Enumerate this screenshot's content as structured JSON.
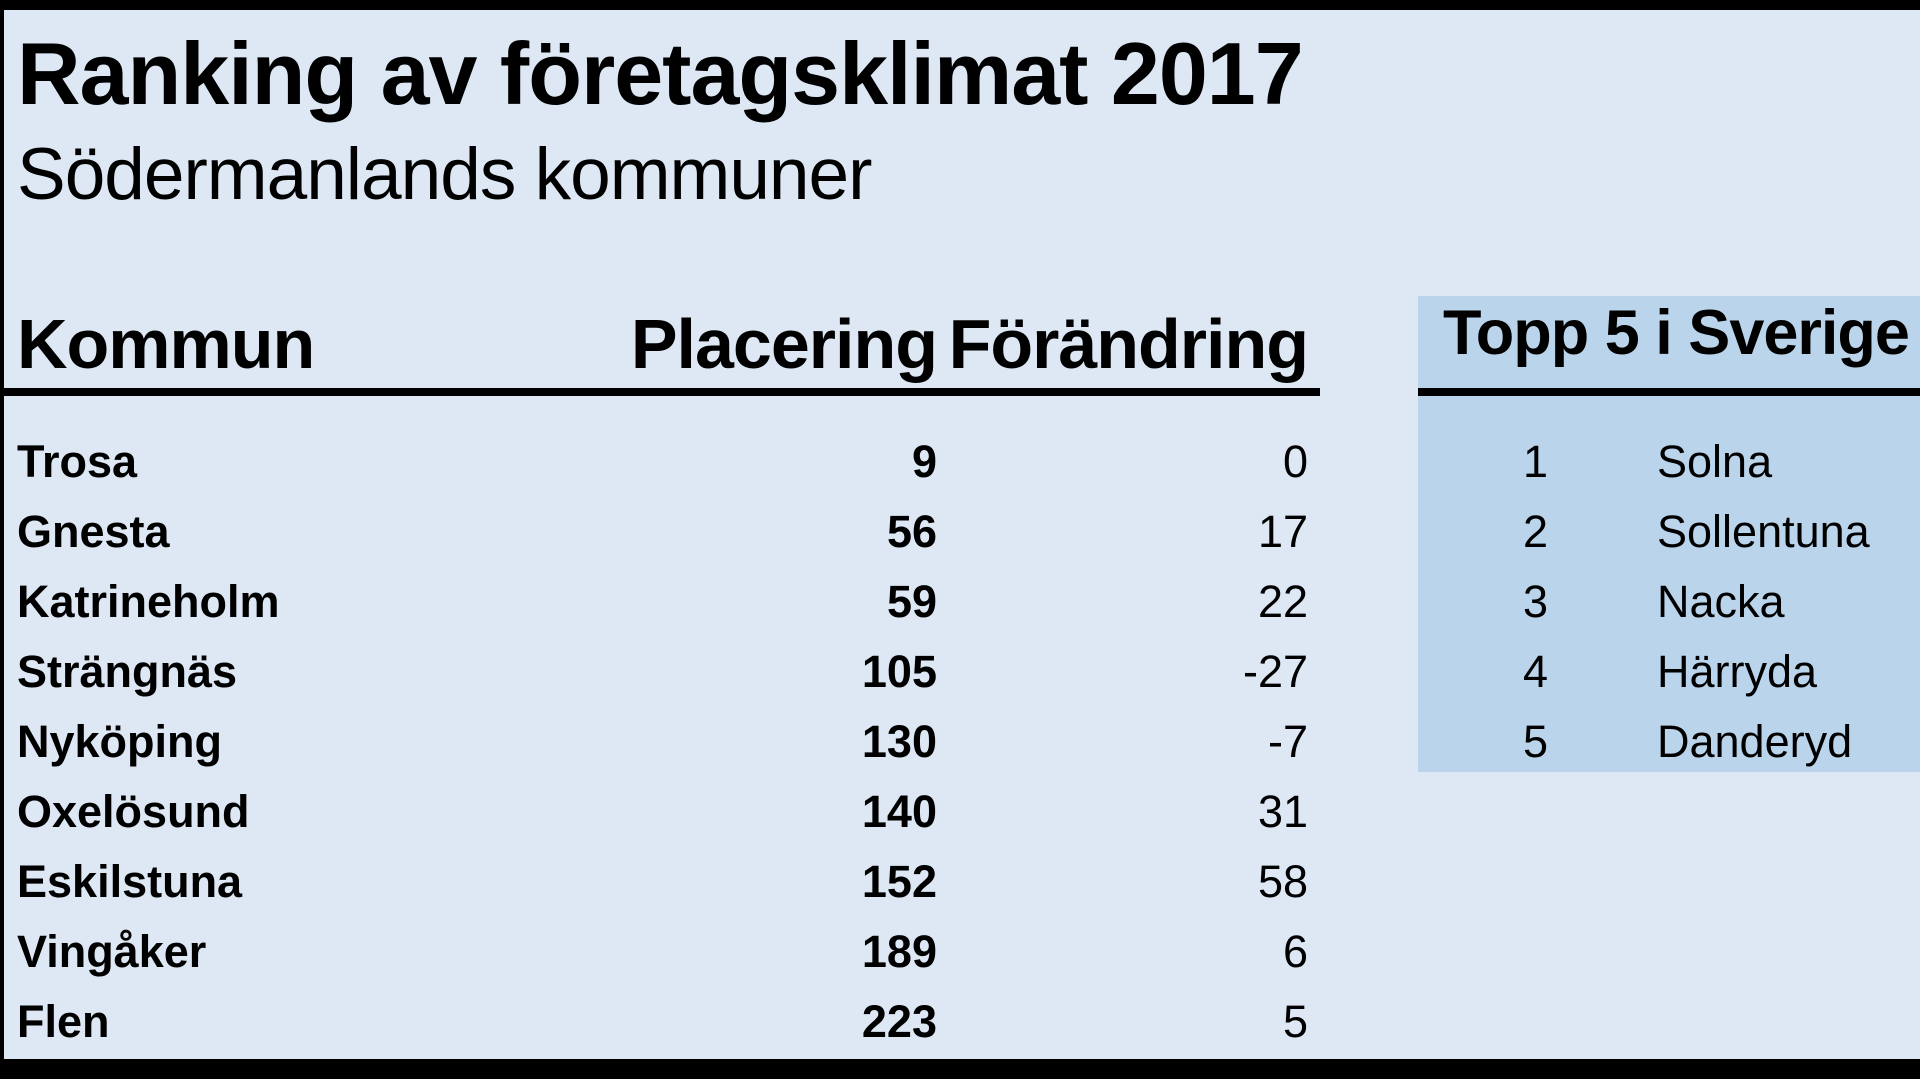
{
  "page": {
    "title": "Ranking av företagsklimat 2017",
    "subtitle": "Södermanlands kommuner"
  },
  "table": {
    "headers": {
      "kommun": "Kommun",
      "placering": "Placering",
      "forandring": "Förändring"
    },
    "rows": [
      {
        "kommun": "Trosa",
        "placering": "9",
        "forandring": "0"
      },
      {
        "kommun": "Gnesta",
        "placering": "56",
        "forandring": "17"
      },
      {
        "kommun": "Katrineholm",
        "placering": "59",
        "forandring": "22"
      },
      {
        "kommun": "Strängnäs",
        "placering": "105",
        "forandring": "-27"
      },
      {
        "kommun": "Nyköping",
        "placering": "130",
        "forandring": "-7"
      },
      {
        "kommun": "Oxelösund",
        "placering": "140",
        "forandring": "31"
      },
      {
        "kommun": "Eskilstuna",
        "placering": "152",
        "forandring": "58"
      },
      {
        "kommun": "Vingåker",
        "placering": "189",
        "forandring": "6"
      },
      {
        "kommun": "Flen",
        "placering": "223",
        "forandring": "5"
      }
    ]
  },
  "top5": {
    "title": "Topp 5 i Sverige",
    "rows": [
      {
        "rank": "1",
        "kommun": "Solna"
      },
      {
        "rank": "2",
        "kommun": "Sollentuna"
      },
      {
        "rank": "3",
        "kommun": "Nacka"
      },
      {
        "rank": "4",
        "kommun": "Härryda"
      },
      {
        "rank": "5",
        "kommun": "Danderyd"
      }
    ]
  },
  "colors": {
    "background": "#dde8f4",
    "panel": "#bad4eb",
    "line": "#000000",
    "text": "#000000"
  }
}
